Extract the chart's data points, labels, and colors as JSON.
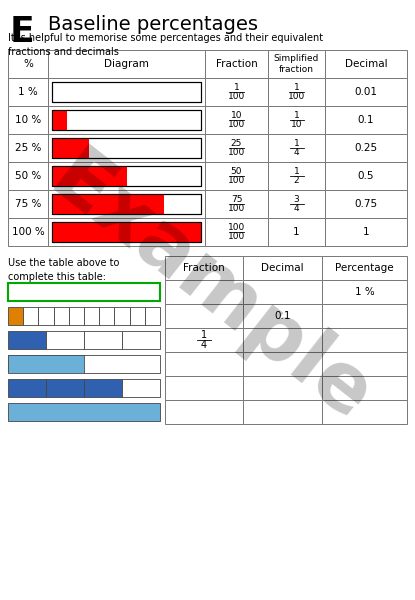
{
  "title": "Baseline percentages",
  "title_letter": "E",
  "subtitle": "It is helpful to memorise some percentages and their equivalent\nfractions and decimals",
  "top_table": {
    "headers": [
      "%",
      "Diagram",
      "Fraction",
      "Simplified\nfraction",
      "Decimal"
    ],
    "rows": [
      {
        "pct": "1 %",
        "fill": 0.01,
        "fraction": "1\n100",
        "simplified": "1\n100",
        "decimal": "0.01"
      },
      {
        "pct": "10 %",
        "fill": 0.1,
        "fraction": "10\n100",
        "simplified": "1\n10",
        "decimal": "0.1"
      },
      {
        "pct": "25 %",
        "fill": 0.25,
        "fraction": "25\n100",
        "simplified": "1\n4",
        "decimal": "0.25"
      },
      {
        "pct": "50 %",
        "fill": 0.5,
        "fraction": "50\n100",
        "simplified": "1\n2",
        "decimal": "0.5"
      },
      {
        "pct": "75 %",
        "fill": 0.75,
        "fraction": "75\n100",
        "simplified": "3\n4",
        "decimal": "0.75"
      },
      {
        "pct": "100 %",
        "fill": 1.0,
        "fraction": "100\n100",
        "simplified": "1",
        "decimal": "1"
      }
    ],
    "bar_color": "#ff0000",
    "bar_outline": "#000000"
  },
  "bottom_table": {
    "instruction": "Use the table above to\ncomplete this table:",
    "headers": [
      "Fraction",
      "Decimal",
      "Percentage"
    ],
    "rows": [
      {
        "fraction": "",
        "decimal": "",
        "percentage": "1 %"
      },
      {
        "fraction": "",
        "decimal": "0.1",
        "percentage": ""
      },
      {
        "fraction": "1\n4",
        "decimal": "",
        "percentage": ""
      },
      {
        "fraction": "",
        "decimal": "",
        "percentage": ""
      },
      {
        "fraction": "",
        "decimal": "",
        "percentage": ""
      },
      {
        "fraction": "",
        "decimal": "",
        "percentage": ""
      }
    ],
    "diagrams": [
      {
        "type": "outline_only",
        "color": "#00aa00",
        "fill": 0,
        "segments": 1,
        "filled_segments": 0
      },
      {
        "type": "segments",
        "color": "#e08000",
        "fill": 0.1,
        "segments": 10,
        "filled_segments": 1
      },
      {
        "type": "segments",
        "color": "#3060b0",
        "fill": 0.25,
        "segments": 4,
        "filled_segments": 1
      },
      {
        "type": "solid",
        "color": "#6ab0d8",
        "fill": 0.5,
        "segments": 2,
        "filled_segments": 0
      },
      {
        "type": "segments",
        "color": "#3060b0",
        "fill": 0.75,
        "segments": 4,
        "filled_segments": 3
      },
      {
        "type": "solid",
        "color": "#6ab0d8",
        "fill": 1.0,
        "segments": 1,
        "filled_segments": 0
      }
    ]
  },
  "example_text": "Example",
  "example_alpha": 0.22,
  "bg_color": "#ffffff"
}
